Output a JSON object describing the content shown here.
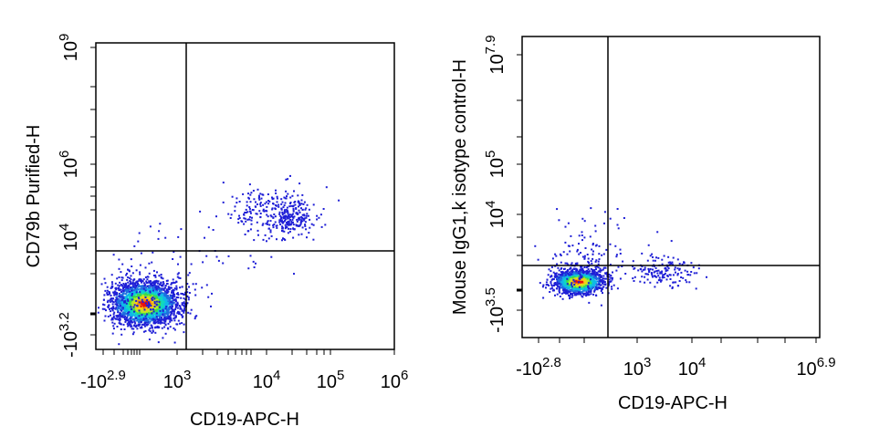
{
  "chart_data": [
    {
      "type": "scatter",
      "subtype": "flow-cytometry-density-dot-plot",
      "xlabel": "CD19-APC-H",
      "ylabel": "CD79b Purified-H",
      "x_scale": "biexponential",
      "y_scale": "biexponential",
      "x_ticks": [
        {
          "base": "-10",
          "exp": "2.9",
          "value": -794
        },
        {
          "base": "10",
          "exp": "3",
          "value": 1000
        },
        {
          "base": "10",
          "exp": "4",
          "value": 10000
        },
        {
          "base": "10",
          "exp": "5",
          "value": 100000
        },
        {
          "base": "10",
          "exp": "6",
          "value": 1000000
        }
      ],
      "y_ticks": [
        {
          "base": "-10",
          "exp": "3.2",
          "value": -1585
        },
        {
          "base": "10",
          "exp": "4",
          "value": 10000
        },
        {
          "base": "10",
          "exp": "6",
          "value": 1000000
        },
        {
          "base": "10",
          "exp": "9",
          "value": 1000000000
        }
      ],
      "gates": {
        "x": 1300,
        "y": 5000
      },
      "populations": [
        {
          "label": "CD19- CD79b-",
          "x_center": 500,
          "y_center": 100,
          "density": "high"
        },
        {
          "label": "CD19+ CD79b+",
          "x_center": 20000,
          "y_center": 20000,
          "density": "medium"
        }
      ]
    },
    {
      "type": "scatter",
      "subtype": "flow-cytometry-density-dot-plot",
      "xlabel": "CD19-APC-H",
      "ylabel": "Mouse IgG1,k isotype control-H",
      "x_scale": "biexponential",
      "y_scale": "biexponential",
      "x_ticks": [
        {
          "base": "-10",
          "exp": "2.8",
          "value": -631
        },
        {
          "base": "10",
          "exp": "3",
          "value": 1000
        },
        {
          "base": "10",
          "exp": "4",
          "value": 10000
        },
        {
          "base": "10",
          "exp": "6.9",
          "value": 7943282
        }
      ],
      "y_ticks": [
        {
          "base": "-10",
          "exp": "3.5",
          "value": -3162
        },
        {
          "base": "10",
          "exp": "4",
          "value": 10000
        },
        {
          "base": "10",
          "exp": "5",
          "value": 100000
        },
        {
          "base": "10",
          "exp": "7.9",
          "value": 79432823
        }
      ],
      "gates": {
        "x": 600,
        "y": 1500
      },
      "populations": [
        {
          "label": "CD19- isotype",
          "x_center": 300,
          "y_center": 300,
          "density": "high"
        },
        {
          "label": "CD19+ isotype",
          "x_center": 3000,
          "y_center": 400,
          "density": "low"
        }
      ]
    }
  ]
}
